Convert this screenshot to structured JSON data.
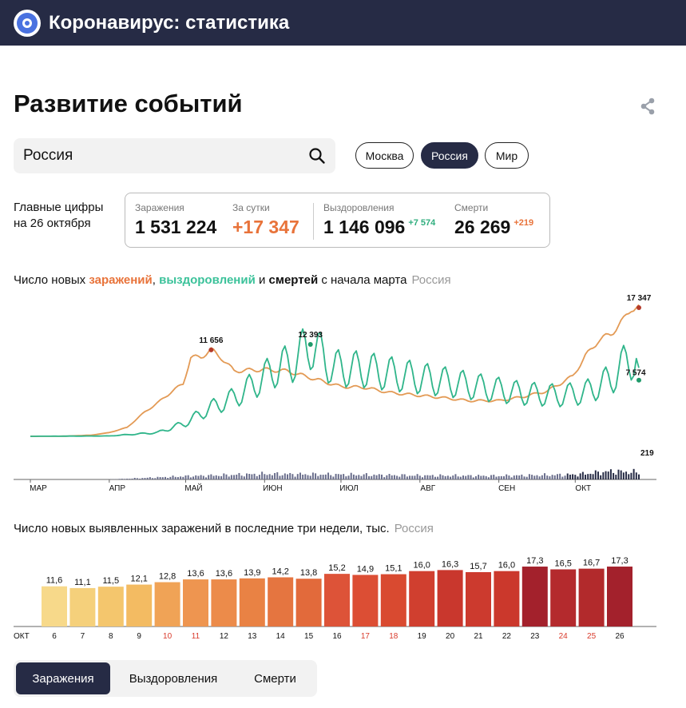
{
  "app": {
    "title": "Коронавирус: статистика"
  },
  "page": {
    "title": "Развитие событий"
  },
  "search": {
    "value": "Россия"
  },
  "regions": [
    {
      "label": "Москва",
      "active": false
    },
    {
      "label": "Россия",
      "active": true
    },
    {
      "label": "Мир",
      "active": false
    }
  ],
  "summary": {
    "label_line1": "Главные цифры",
    "label_line2": "на 26 октября",
    "stats": [
      {
        "label": "Заражения",
        "value": "1 531 224",
        "delta": ""
      },
      {
        "label": "За сутки",
        "value": "+17 347",
        "delta": ""
      },
      {
        "label": "Выздоровления",
        "value": "1 146 096",
        "delta": "+7 574"
      },
      {
        "label": "Смерти",
        "value": "26 269",
        "delta": "+219"
      }
    ]
  },
  "colors": {
    "infections": "#e8733a",
    "recoveries": "#3bc29a",
    "deaths": "#3d4060",
    "delta_recovery": "#2fae7e",
    "delta_death": "#e8733a",
    "accent_dark": "#262b45"
  },
  "chart1": {
    "title_parts": [
      "Число новых ",
      "заражений",
      ", ",
      "выздоровлений",
      " и ",
      "смертей",
      " с начала марта"
    ],
    "region": "Россия"
  },
  "chart2": {
    "title": "Число новых выявленных заражений в последние три недели, тыс.",
    "region": "Россия"
  },
  "chart_data": [
    {
      "type": "line",
      "x_start": "2020-03-01",
      "x_end": "2020-10-26",
      "xtick_labels": [
        "МАР",
        "АПР",
        "МАЙ",
        "ИЮН",
        "ИЮЛ",
        "АВГ",
        "СЕН",
        "ОКТ"
      ],
      "series": [
        {
          "name": "заражений",
          "color": "#e8733a",
          "points": [
            [
              "2020-03-01",
              0
            ],
            [
              "2020-03-15",
              20
            ],
            [
              "2020-03-25",
              160
            ],
            [
              "2020-04-01",
              500
            ],
            [
              "2020-04-08",
              1200
            ],
            [
              "2020-04-15",
              3300
            ],
            [
              "2020-04-20",
              4500
            ],
            [
              "2020-04-25",
              5900
            ],
            [
              "2020-04-30",
              7100
            ],
            [
              "2020-05-03",
              10600
            ],
            [
              "2020-05-07",
              10700
            ],
            [
              "2020-05-11",
              11656
            ],
            [
              "2020-05-15",
              10600
            ],
            [
              "2020-05-20",
              8800
            ],
            [
              "2020-05-25",
              8900
            ],
            [
              "2020-06-01",
              9000
            ],
            [
              "2020-06-10",
              8800
            ],
            [
              "2020-06-20",
              7800
            ],
            [
              "2020-07-01",
              6700
            ],
            [
              "2020-07-10",
              6600
            ],
            [
              "2020-07-20",
              5900
            ],
            [
              "2020-08-01",
              5500
            ],
            [
              "2020-08-10",
              5200
            ],
            [
              "2020-08-20",
              4800
            ],
            [
              "2020-09-01",
              4800
            ],
            [
              "2020-09-10",
              5300
            ],
            [
              "2020-09-20",
              6100
            ],
            [
              "2020-09-30",
              8100
            ],
            [
              "2020-10-05",
              10800
            ],
            [
              "2020-10-10",
              12900
            ],
            [
              "2020-10-15",
              13800
            ],
            [
              "2020-10-20",
              15700
            ],
            [
              "2020-10-23",
              17300
            ],
            [
              "2020-10-26",
              17347
            ]
          ]
        },
        {
          "name": "выздоровлений",
          "color": "#3bc29a",
          "points": [
            [
              "2020-03-01",
              0
            ],
            [
              "2020-04-01",
              50
            ],
            [
              "2020-04-20",
              500
            ],
            [
              "2020-05-01",
              1800
            ],
            [
              "2020-05-10",
              3700
            ],
            [
              "2020-05-20",
              5200
            ],
            [
              "2020-05-28",
              7000
            ],
            [
              "2020-06-05",
              9000
            ],
            [
              "2020-06-12",
              10000
            ],
            [
              "2020-06-19",
              12393
            ],
            [
              "2020-06-28",
              9200
            ],
            [
              "2020-07-10",
              9000
            ],
            [
              "2020-07-25",
              8200
            ],
            [
              "2020-08-10",
              7400
            ],
            [
              "2020-08-25",
              6600
            ],
            [
              "2020-09-10",
              5800
            ],
            [
              "2020-09-25",
              5500
            ],
            [
              "2020-10-05",
              5900
            ],
            [
              "2020-10-15",
              7700
            ],
            [
              "2020-10-22",
              10400
            ],
            [
              "2020-10-25",
              10500
            ],
            [
              "2020-10-26",
              7574
            ]
          ]
        },
        {
          "name": "смертей",
          "color": "#3d4060",
          "points": [
            [
              "2020-04-01",
              2
            ],
            [
              "2020-05-01",
              100
            ],
            [
              "2020-06-01",
              170
            ],
            [
              "2020-07-01",
              150
            ],
            [
              "2020-08-01",
              120
            ],
            [
              "2020-09-01",
              110
            ],
            [
              "2020-10-01",
              150
            ],
            [
              "2020-10-15",
              250
            ],
            [
              "2020-10-26",
              219
            ]
          ]
        }
      ],
      "annotations": [
        {
          "date": "2020-05-11",
          "value": 11656,
          "label": "11 656",
          "series": "заражений"
        },
        {
          "date": "2020-06-19",
          "value": 12393,
          "label": "12 393",
          "series": "выздоровлений"
        },
        {
          "date": "2020-10-26",
          "value": 17347,
          "label": "17 347",
          "series": "заражений"
        },
        {
          "date": "2020-10-26",
          "value": 7574,
          "label": "7 574",
          "series": "выздоровлений"
        },
        {
          "date": "2020-10-26",
          "value": 219,
          "label": "219",
          "series": "смертей"
        }
      ],
      "ylim": [
        0,
        18000
      ]
    },
    {
      "type": "bar",
      "title": "Число новых выявленных заражений в последние три недели, тыс.",
      "month_label": "ОКТ",
      "categories": [
        "6",
        "7",
        "8",
        "9",
        "10",
        "11",
        "12",
        "13",
        "14",
        "15",
        "16",
        "17",
        "18",
        "19",
        "20",
        "21",
        "22",
        "23",
        "24",
        "25",
        "26"
      ],
      "values": [
        11.6,
        11.1,
        11.5,
        12.1,
        12.8,
        13.6,
        13.6,
        13.9,
        14.2,
        13.8,
        15.2,
        14.9,
        15.1,
        16.0,
        16.3,
        15.7,
        16.0,
        17.3,
        16.5,
        16.7,
        17.3
      ],
      "value_labels": [
        "11,6",
        "11,1",
        "11,5",
        "12,1",
        "12,8",
        "13,6",
        "13,6",
        "13,9",
        "14,2",
        "13,8",
        "15,2",
        "14,9",
        "15,1",
        "16,0",
        "16,3",
        "15,7",
        "16,0",
        "17,3",
        "16,5",
        "16,7",
        "17,3"
      ],
      "weekend_days": [
        "10",
        "11",
        "17",
        "18",
        "24",
        "25"
      ],
      "weekend_color": "#d93a2b",
      "palette": [
        "#f7d98a",
        "#f5d07b",
        "#f4c66d",
        "#f3bb62",
        "#f0a356",
        "#ee9550",
        "#ec8b4a",
        "#e98244",
        "#e57540",
        "#e26a3b",
        "#dd5338",
        "#dc4e34",
        "#d94a30",
        "#d03f2f",
        "#c9372d",
        "#cc3a2e",
        "#cb382c",
        "#a3212c",
        "#b42a2d",
        "#b22a2c",
        "#a3212c"
      ],
      "ylim": [
        0,
        18
      ]
    }
  ],
  "tabs": [
    {
      "label": "Заражения",
      "active": true
    },
    {
      "label": "Выздоровления",
      "active": false
    },
    {
      "label": "Смерти",
      "active": false
    }
  ]
}
